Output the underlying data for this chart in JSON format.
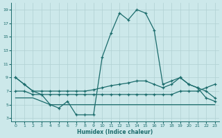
{
  "xlabel": "Humidex (Indice chaleur)",
  "bg_color": "#cce8ea",
  "grid_color": "#b0d0d2",
  "line_color": "#1a6b6b",
  "xlim": [
    -0.5,
    23.5
  ],
  "ylim": [
    2.5,
    20.0
  ],
  "xticks": [
    0,
    1,
    2,
    3,
    4,
    5,
    6,
    7,
    8,
    9,
    10,
    11,
    12,
    13,
    14,
    15,
    16,
    17,
    18,
    19,
    20,
    21,
    22,
    23
  ],
  "yticks": [
    3,
    5,
    7,
    9,
    11,
    13,
    15,
    17,
    19
  ],
  "curve_main_x": [
    0,
    1,
    2,
    3,
    4,
    5,
    6,
    7,
    8,
    9,
    10,
    11,
    12,
    13,
    14,
    15,
    16,
    17,
    18,
    19,
    20,
    21,
    22,
    23
  ],
  "curve_main_y": [
    9.0,
    8.0,
    7.0,
    6.5,
    5.0,
    4.5,
    5.5,
    3.5,
    3.5,
    3.5,
    12.0,
    15.5,
    18.5,
    17.5,
    19.0,
    18.5,
    16.0,
    8.0,
    8.5,
    9.0,
    8.0,
    7.5,
    6.0,
    5.5
  ],
  "curve_upper_x": [
    0,
    1,
    2,
    3,
    4,
    5,
    6,
    7,
    8,
    9,
    10,
    11,
    12,
    13,
    14,
    15,
    16,
    17,
    18,
    19,
    20,
    21,
    22,
    23
  ],
  "curve_upper_y": [
    9.0,
    8.0,
    7.0,
    7.0,
    7.0,
    7.0,
    7.0,
    7.0,
    7.0,
    7.2,
    7.5,
    7.8,
    8.0,
    8.2,
    8.5,
    8.5,
    8.0,
    7.5,
    8.0,
    9.0,
    8.0,
    7.5,
    7.0,
    6.0
  ],
  "curve_mid_x": [
    0,
    1,
    2,
    3,
    4,
    5,
    6,
    7,
    8,
    9,
    10,
    11,
    12,
    13,
    14,
    15,
    16,
    17,
    18,
    19,
    20,
    21,
    22,
    23
  ],
  "curve_mid_y": [
    7.0,
    7.0,
    6.5,
    6.5,
    6.5,
    6.5,
    6.5,
    6.5,
    6.5,
    6.5,
    6.5,
    6.5,
    6.5,
    6.5,
    6.5,
    6.5,
    6.5,
    6.5,
    6.5,
    7.0,
    7.0,
    7.0,
    7.5,
    8.0
  ],
  "curve_low_x": [
    0,
    1,
    2,
    3,
    4,
    5,
    6,
    7,
    8,
    9,
    10,
    11,
    12,
    13,
    14,
    15,
    16,
    17,
    18,
    19,
    20,
    21,
    22,
    23
  ],
  "curve_low_y": [
    6.0,
    6.0,
    6.0,
    5.5,
    5.0,
    5.0,
    5.0,
    5.0,
    5.0,
    5.0,
    5.0,
    5.0,
    5.0,
    5.0,
    5.0,
    5.0,
    5.0,
    5.0,
    5.0,
    5.0,
    5.0,
    5.0,
    5.0,
    5.0
  ]
}
